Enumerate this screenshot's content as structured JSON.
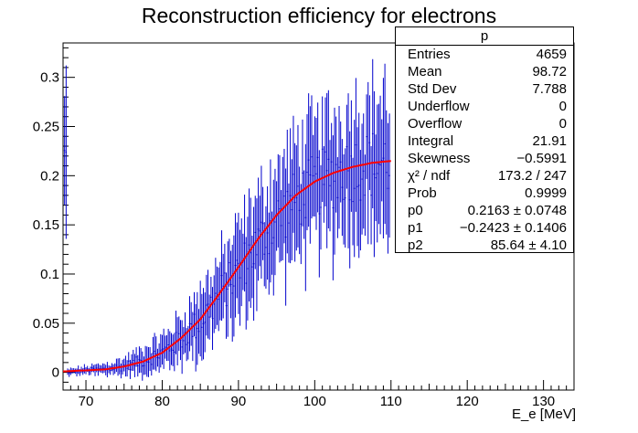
{
  "title": "Reconstruction efficiency for electrons",
  "stats": {
    "name": "p",
    "rows": [
      {
        "label": "Entries",
        "value": "4659"
      },
      {
        "label": "Mean",
        "value": "98.72"
      },
      {
        "label": "Std Dev",
        "value": "7.788"
      },
      {
        "label": "Underflow",
        "value": "0"
      },
      {
        "label": "Overflow",
        "value": "0"
      },
      {
        "label": "Integral",
        "value": "21.91"
      },
      {
        "label": "Skewness",
        "value": "−0.5991"
      },
      {
        "label": "χ² / ndf",
        "value": "173.2 / 247"
      },
      {
        "label": "Prob",
        "value": "0.9999"
      },
      {
        "label": "p0",
        "value": "0.2163 ± 0.0748"
      },
      {
        "label": "p1",
        "value": "−0.2423 ± 0.1406"
      },
      {
        "label": "p2",
        "value": "85.64 ± 4.10"
      }
    ]
  },
  "chart_data": {
    "type": "scatter",
    "title": "Reconstruction efficiency for electrons",
    "xlabel": "E_e [MeV]",
    "ylabel": "",
    "xlim": [
      67,
      134
    ],
    "ylim": [
      -0.018,
      0.335
    ],
    "xticks": [
      "70",
      "80",
      "90",
      "100",
      "110",
      "120",
      "130"
    ],
    "yticks": [
      "0",
      "0.05",
      "0.1",
      "0.15",
      "0.2",
      "0.25",
      "0.3"
    ],
    "grid": false,
    "series": [
      {
        "kind": "points-with-error-bars",
        "color": "#0000cc",
        "points": [
          [
            67.5,
            0.0,
            0.003
          ],
          [
            70,
            0.002,
            0.004
          ],
          [
            72.5,
            0.003,
            0.006
          ],
          [
            75,
            0.006,
            0.008
          ],
          [
            77.5,
            0.012,
            0.012
          ],
          [
            80,
            0.02,
            0.016
          ],
          [
            82.5,
            0.034,
            0.022
          ],
          [
            85,
            0.052,
            0.03
          ],
          [
            87.5,
            0.078,
            0.036
          ],
          [
            90,
            0.103,
            0.042
          ],
          [
            92.5,
            0.13,
            0.048
          ],
          [
            95,
            0.155,
            0.052
          ],
          [
            97.5,
            0.175,
            0.056
          ],
          [
            100,
            0.19,
            0.06
          ],
          [
            102.5,
            0.2,
            0.062
          ],
          [
            105,
            0.208,
            0.064
          ],
          [
            107.5,
            0.212,
            0.066
          ],
          [
            110,
            0.214,
            0.068
          ]
        ]
      },
      {
        "kind": "fit-curve",
        "color": "#ff0000",
        "function": "p0 * (1 + erf((x - p2) / ...)) style turn-on",
        "points": [
          [
            67,
            0.001
          ],
          [
            70,
            0.002
          ],
          [
            72.5,
            0.003
          ],
          [
            75,
            0.006
          ],
          [
            77.5,
            0.011
          ],
          [
            80,
            0.02
          ],
          [
            82.5,
            0.035
          ],
          [
            85,
            0.054
          ],
          [
            87.5,
            0.08
          ],
          [
            90,
            0.107
          ],
          [
            92.5,
            0.135
          ],
          [
            95,
            0.16
          ],
          [
            97.5,
            0.18
          ],
          [
            100,
            0.194
          ],
          [
            102.5,
            0.203
          ],
          [
            105,
            0.209
          ],
          [
            107.5,
            0.213
          ],
          [
            110,
            0.215
          ]
        ]
      }
    ]
  }
}
